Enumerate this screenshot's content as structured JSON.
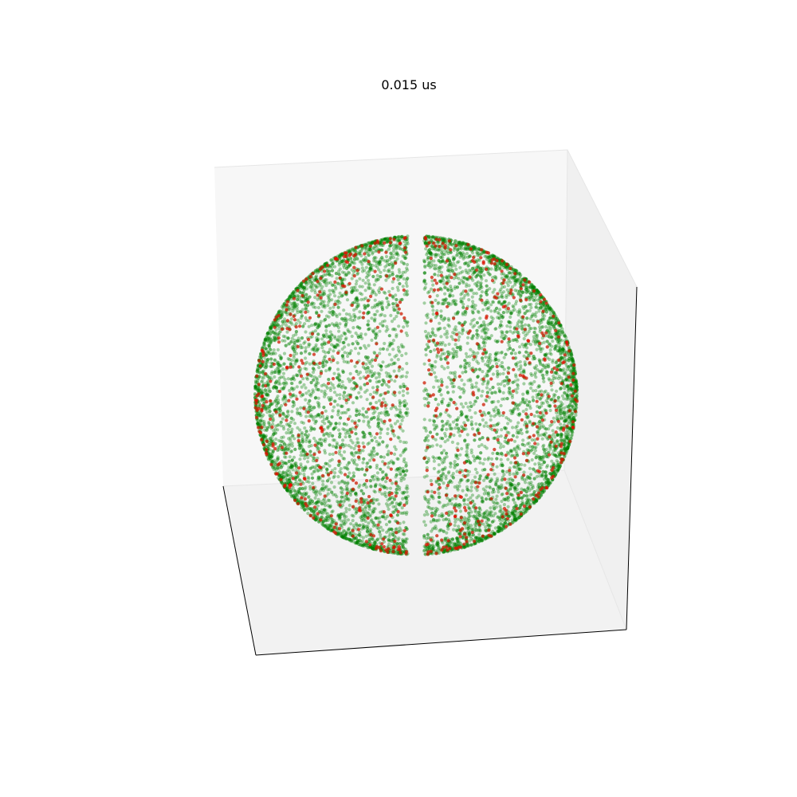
{
  "chart_data": {
    "type": "scatter",
    "projection": "3d",
    "title": "0.015 us",
    "xlabel": "",
    "ylabel": "",
    "zlabel": "",
    "axes_visible": false,
    "grid": false,
    "legend": "none",
    "shape": "sphere shell with a vertical unpopulated slit in the middle",
    "series": [
      {
        "color": "#008000",
        "alpha": 0.35,
        "point_count_approx": 9000
      },
      {
        "color": "#ff0000",
        "alpha": 0.6,
        "point_count_approx": 700
      }
    ],
    "colors": {
      "pane_back": "#f7f7f7",
      "pane_side": "#f0f0f0",
      "pane_floor": "#f2f2f2",
      "axis_line": "#000000"
    }
  }
}
